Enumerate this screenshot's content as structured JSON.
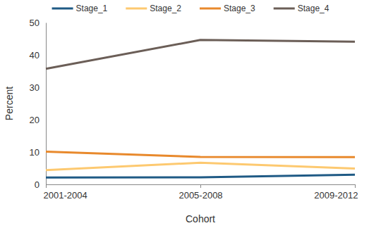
{
  "chart_data": {
    "type": "line",
    "x_label": "Cohort",
    "y_label": "Percent",
    "categories": [
      "2001-2004",
      "2005-2008",
      "2009-2012"
    ],
    "series": [
      {
        "name": "Stage_1",
        "color": "#1f5a85",
        "values": [
          2.1,
          2.2,
          3.0
        ]
      },
      {
        "name": "Stage_2",
        "color": "#fdc970",
        "values": [
          4.4,
          6.7,
          4.9
        ]
      },
      {
        "name": "Stage_3",
        "color": "#e8892c",
        "values": [
          10.1,
          8.5,
          8.4
        ]
      },
      {
        "name": "Stage_4",
        "color": "#6b5e57",
        "values": [
          35.7,
          44.6,
          44.1
        ]
      }
    ],
    "ylim": [
      0,
      50
    ],
    "yticks": [
      0,
      10,
      20,
      30,
      40,
      50
    ],
    "legend": "top"
  }
}
